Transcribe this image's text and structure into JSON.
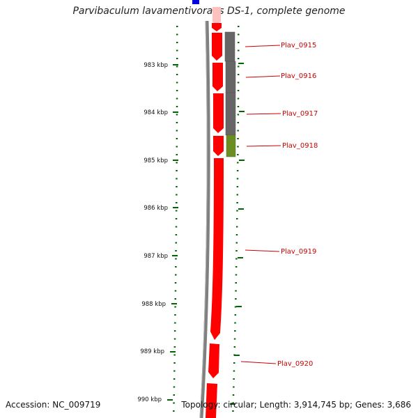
{
  "title": "Parvibaculum lavamentivorans DS-1, complete genome",
  "accession": "Accession: NC_009719",
  "summary": "Topology: circular; Length: 3,914,745 bp; Genes: 3,686",
  "colors": {
    "cds": "#ff0000",
    "cds_light": "#ffc0c0",
    "blue_feature": "#0000e0",
    "backbone": "#808080",
    "tick": "#006400",
    "cog_gray": "#666666",
    "cog_olive": "#6b8e23",
    "label": "#cc0000"
  },
  "ticks": [
    "983 kbp",
    "984 kbp",
    "985 kbp",
    "986 kbp",
    "987 kbp",
    "988 kbp",
    "989 kbp",
    "990 kbp"
  ],
  "genes": [
    "Plav_0915",
    "Plav_0916",
    "Plav_0917",
    "Plav_0918",
    "Plav_0919",
    "Plav_0920"
  ]
}
